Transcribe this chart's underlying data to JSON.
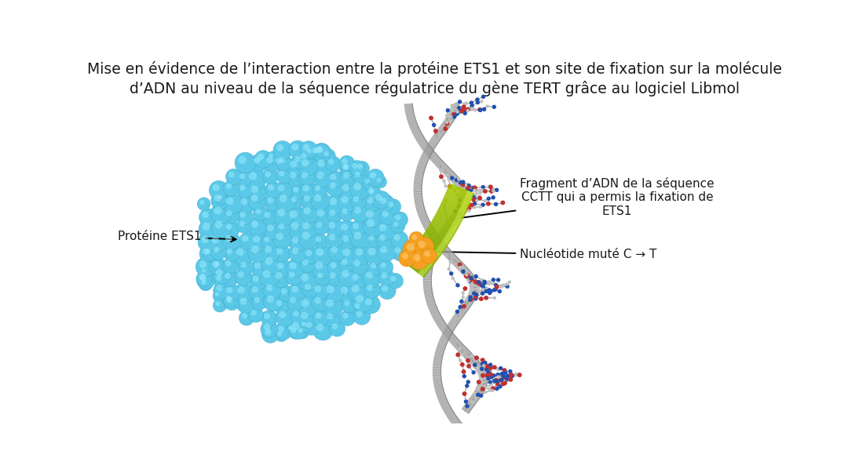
{
  "title_line1": "Mise en évidence de l’interaction entre la protéine ETS1 et son site de fixation sur la molécule",
  "title_line2": "d’ADN au niveau de la séquence régulatrice du gène TERT grâce au logiciel Libmol",
  "label_ets1": "Protéine ETS1",
  "label_fragment": "Fragment d’ADN de la séquence\nCCTT qui a permis la fixation de\nETS1",
  "label_nucleotide": "Nucléotide muté C → T",
  "bg_color": "#ffffff",
  "title_fontsize": 13.5,
  "label_fontsize": 11,
  "cyan_color": "#5BC8E8",
  "cyan_dark": "#3BA8C8",
  "cyan_light": "#9EEEFF",
  "orange_color": "#F5A020",
  "orange_light": "#FFD080",
  "green_dark": "#7AAA00",
  "green_light": "#C8E000",
  "gray_ribbon": "#A0A0A0",
  "gray_ribbon_dark": "#606060",
  "dna_blue": "#2050B0",
  "dna_red": "#C03030",
  "dna_gray": "#C0C0C0",
  "dna_white": "#E8E8E8"
}
